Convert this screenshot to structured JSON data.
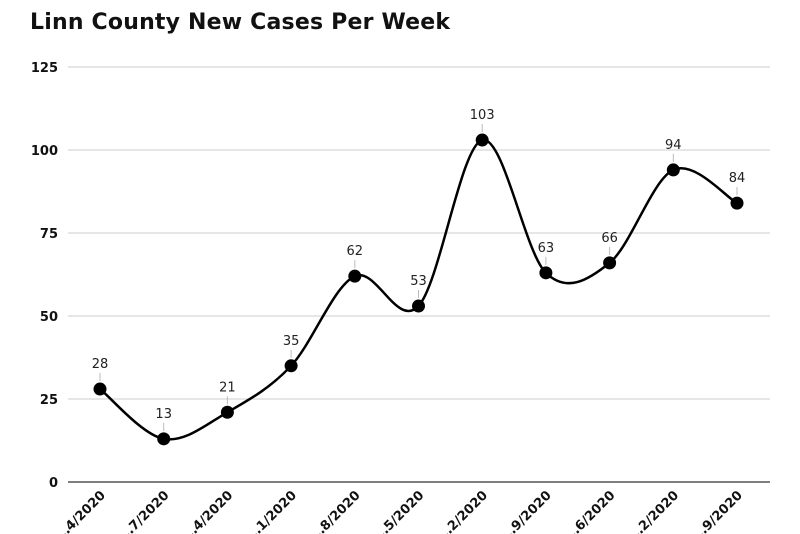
{
  "chart_data": {
    "type": "line",
    "title": "Linn County New Cases Per Week",
    "xlabel": "",
    "ylabel": "",
    "ylim": [
      0,
      125
    ],
    "yticks": [
      0,
      25,
      50,
      75,
      100,
      125
    ],
    "grid": true,
    "categories": [
      "…4/2020",
      "…7/2020",
      "…4/2020",
      "…1/2020",
      "…8/2020",
      "…5/2020",
      "…2/2020",
      "…9/2020",
      "…6/2020",
      "…2/2020",
      "…9/2020"
    ],
    "series": [
      {
        "values": [
          28,
          13,
          21,
          35,
          62,
          53,
          103,
          63,
          66,
          94,
          84
        ]
      }
    ],
    "colors": {
      "line": "#000000",
      "grid": "#cccccc",
      "label_leader": "#bbbbbb"
    }
  }
}
